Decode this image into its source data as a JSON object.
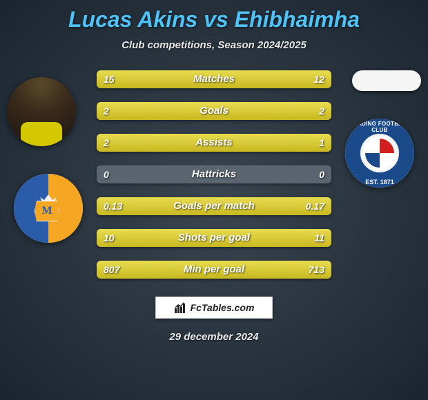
{
  "title": "Lucas Akins vs Ehibhaimha",
  "subtitle": "Club competitions, Season 2024/2025",
  "footer_site": "FcTables.com",
  "footer_date": "29 december 2024",
  "colors": {
    "title": "#4fc3f7",
    "text": "#e8e8e8",
    "bar_track": "#5a6570",
    "bar_fill_top": "#e8dc50",
    "bar_fill_bottom": "#c8b820",
    "bg_inner": "#3a4550",
    "bg_mid": "#2a3540",
    "bg_outer": "#1a2530"
  },
  "club_left": {
    "name_letter": "M",
    "color_left": "#2a5caa",
    "color_right": "#f5a623"
  },
  "club_right": {
    "top_text": "READING FOOTBALL CLUB",
    "bottom_text": "EST. 1871",
    "ring_color": "#1a4a8a"
  },
  "stats": [
    {
      "label": "Matches",
      "left_val": "15",
      "right_val": "12",
      "left_pct": 50,
      "right_pct": 50
    },
    {
      "label": "Goals",
      "left_val": "2",
      "right_val": "2",
      "left_pct": 50,
      "right_pct": 50
    },
    {
      "label": "Assists",
      "left_val": "2",
      "right_val": "1",
      "left_pct": 60,
      "right_pct": 40
    },
    {
      "label": "Hattricks",
      "left_val": "0",
      "right_val": "0",
      "left_pct": 0,
      "right_pct": 0
    },
    {
      "label": "Goals per match",
      "left_val": "0.13",
      "right_val": "0.17",
      "left_pct": 45,
      "right_pct": 55
    },
    {
      "label": "Shots per goal",
      "left_val": "10",
      "right_val": "11",
      "left_pct": 50,
      "right_pct": 50
    },
    {
      "label": "Min per goal",
      "left_val": "807",
      "right_val": "713",
      "left_pct": 50,
      "right_pct": 50
    }
  ]
}
